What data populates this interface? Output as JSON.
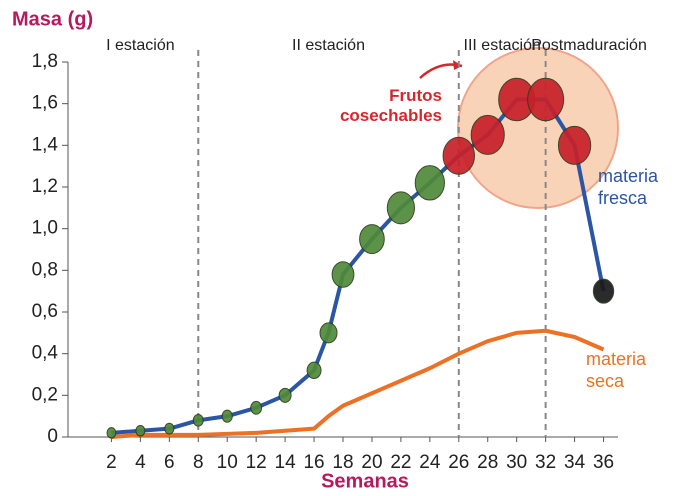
{
  "chart_data": {
    "type": "line",
    "y_label": "Masa (g)",
    "x_label": "Semanas",
    "periods": [
      {
        "label": "I estación",
        "x": 4
      },
      {
        "label": "II estación",
        "x": 17
      },
      {
        "label": "III estación",
        "x": 29
      },
      {
        "label": "Postmaduración",
        "x": 35
      }
    ],
    "period_boundaries": [
      8,
      26,
      32
    ],
    "annotation": "Frutos cosechables",
    "x": [
      2,
      4,
      6,
      8,
      10,
      12,
      14,
      16,
      17,
      18,
      20,
      22,
      24,
      26,
      28,
      30,
      32,
      34,
      36
    ],
    "series": [
      {
        "name": "materia fresca",
        "color": "#2b55a5",
        "values": [
          0.02,
          0.03,
          0.04,
          0.08,
          0.1,
          0.14,
          0.2,
          0.32,
          0.5,
          0.78,
          0.95,
          1.1,
          1.22,
          1.35,
          1.45,
          1.62,
          1.62,
          1.4,
          0.7
        ]
      },
      {
        "name": "materia seca",
        "color": "#ec7125",
        "values": [
          0.0,
          0.01,
          0.01,
          0.01,
          0.015,
          0.02,
          0.03,
          0.04,
          0.1,
          0.15,
          0.21,
          0.27,
          0.33,
          0.4,
          0.46,
          0.5,
          0.51,
          0.48,
          0.42
        ]
      }
    ],
    "xlim": [
      -1,
      37
    ],
    "ylim": [
      0,
      1.8
    ],
    "xticks": [
      2,
      4,
      6,
      8,
      10,
      12,
      14,
      16,
      18,
      20,
      22,
      24,
      26,
      28,
      30,
      32,
      34,
      36
    ],
    "yticks": [
      0,
      {
        "value": 0.2,
        "label": "0,2"
      },
      {
        "value": 0.4,
        "label": "0,4"
      },
      {
        "value": 0.6,
        "label": "0,6"
      },
      {
        "value": 0.8,
        "label": "0,8"
      },
      {
        "value": 1.0,
        "label": "1,0"
      },
      {
        "value": 1.2,
        "label": "1,2"
      },
      {
        "value": 1.4,
        "label": "1,4"
      },
      {
        "value": 1.6,
        "label": "1,6"
      },
      {
        "value": 1.8,
        "label": "1,8"
      }
    ]
  }
}
